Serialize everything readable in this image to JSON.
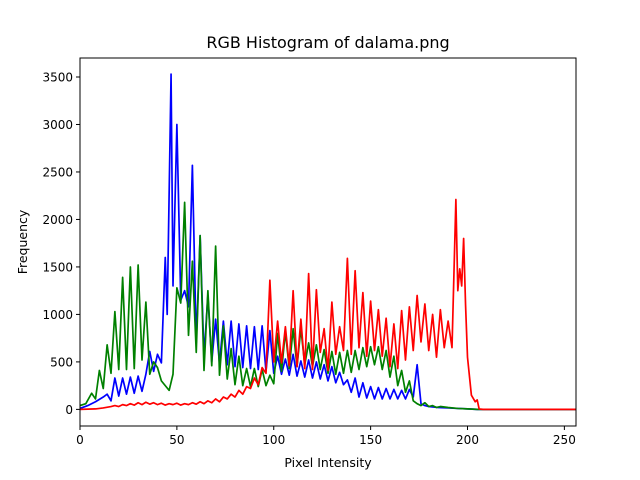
{
  "chart_data": {
    "type": "line",
    "title": "RGB Histogram of dalama.png",
    "xlabel": "Pixel Intensity",
    "ylabel": "Frequency",
    "xlim": [
      0,
      256
    ],
    "ylim": [
      -175,
      3700
    ],
    "xticks": [
      0,
      50,
      100,
      150,
      200,
      250
    ],
    "yticks": [
      0,
      500,
      1000,
      1500,
      2000,
      2500,
      3000,
      3500
    ],
    "grid": false,
    "legend": "none",
    "series": [
      {
        "color": "#0000ff",
        "points": [
          [
            0,
            10
          ],
          [
            4,
            40
          ],
          [
            8,
            80
          ],
          [
            12,
            130
          ],
          [
            14,
            160
          ],
          [
            16,
            90
          ],
          [
            18,
            330
          ],
          [
            20,
            140
          ],
          [
            22,
            330
          ],
          [
            24,
            160
          ],
          [
            26,
            340
          ],
          [
            28,
            170
          ],
          [
            30,
            350
          ],
          [
            32,
            190
          ],
          [
            34,
            370
          ],
          [
            36,
            610
          ],
          [
            38,
            400
          ],
          [
            40,
            580
          ],
          [
            42,
            490
          ],
          [
            44,
            1600
          ],
          [
            45,
            1000
          ],
          [
            47,
            3530
          ],
          [
            48,
            1300
          ],
          [
            50,
            3000
          ],
          [
            52,
            1150
          ],
          [
            54,
            1250
          ],
          [
            56,
            1080
          ],
          [
            58,
            2570
          ],
          [
            60,
            700
          ],
          [
            62,
            1830
          ],
          [
            64,
            560
          ],
          [
            66,
            1200
          ],
          [
            68,
            500
          ],
          [
            70,
            950
          ],
          [
            72,
            480
          ],
          [
            74,
            930
          ],
          [
            76,
            470
          ],
          [
            78,
            930
          ],
          [
            80,
            450
          ],
          [
            82,
            900
          ],
          [
            84,
            440
          ],
          [
            86,
            880
          ],
          [
            88,
            430
          ],
          [
            90,
            870
          ],
          [
            92,
            420
          ],
          [
            94,
            880
          ],
          [
            96,
            400
          ],
          [
            98,
            830
          ],
          [
            100,
            380
          ],
          [
            102,
            560
          ],
          [
            104,
            370
          ],
          [
            106,
            530
          ],
          [
            108,
            360
          ],
          [
            110,
            580
          ],
          [
            112,
            350
          ],
          [
            114,
            510
          ],
          [
            116,
            340
          ],
          [
            118,
            520
          ],
          [
            120,
            330
          ],
          [
            122,
            500
          ],
          [
            124,
            320
          ],
          [
            126,
            470
          ],
          [
            128,
            300
          ],
          [
            130,
            450
          ],
          [
            132,
            280
          ],
          [
            134,
            390
          ],
          [
            136,
            260
          ],
          [
            138,
            310
          ],
          [
            140,
            180
          ],
          [
            142,
            330
          ],
          [
            144,
            130
          ],
          [
            146,
            280
          ],
          [
            148,
            120
          ],
          [
            150,
            240
          ],
          [
            152,
            110
          ],
          [
            154,
            230
          ],
          [
            156,
            110
          ],
          [
            158,
            220
          ],
          [
            160,
            110
          ],
          [
            162,
            210
          ],
          [
            164,
            110
          ],
          [
            166,
            200
          ],
          [
            168,
            110
          ],
          [
            170,
            210
          ],
          [
            172,
            130
          ],
          [
            174,
            470
          ],
          [
            176,
            60
          ],
          [
            178,
            40
          ],
          [
            180,
            30
          ],
          [
            185,
            20
          ],
          [
            190,
            15
          ],
          [
            195,
            10
          ],
          [
            200,
            5
          ],
          [
            205,
            0
          ],
          [
            256,
            0
          ]
        ]
      },
      {
        "color": "#008000",
        "points": [
          [
            0,
            40
          ],
          [
            3,
            60
          ],
          [
            6,
            170
          ],
          [
            8,
            110
          ],
          [
            10,
            410
          ],
          [
            12,
            220
          ],
          [
            14,
            680
          ],
          [
            16,
            380
          ],
          [
            18,
            1030
          ],
          [
            20,
            420
          ],
          [
            22,
            1390
          ],
          [
            24,
            420
          ],
          [
            26,
            1500
          ],
          [
            28,
            430
          ],
          [
            30,
            1520
          ],
          [
            32,
            520
          ],
          [
            34,
            1130
          ],
          [
            36,
            370
          ],
          [
            38,
            500
          ],
          [
            40,
            440
          ],
          [
            42,
            300
          ],
          [
            44,
            250
          ],
          [
            46,
            200
          ],
          [
            48,
            370
          ],
          [
            50,
            1280
          ],
          [
            52,
            1120
          ],
          [
            54,
            2180
          ],
          [
            56,
            780
          ],
          [
            58,
            1560
          ],
          [
            60,
            600
          ],
          [
            62,
            1830
          ],
          [
            64,
            410
          ],
          [
            66,
            1250
          ],
          [
            68,
            460
          ],
          [
            70,
            1720
          ],
          [
            72,
            360
          ],
          [
            74,
            880
          ],
          [
            76,
            320
          ],
          [
            78,
            640
          ],
          [
            80,
            260
          ],
          [
            82,
            560
          ],
          [
            84,
            250
          ],
          [
            86,
            430
          ],
          [
            88,
            240
          ],
          [
            90,
            430
          ],
          [
            92,
            240
          ],
          [
            94,
            420
          ],
          [
            96,
            250
          ],
          [
            98,
            360
          ],
          [
            100,
            270
          ],
          [
            102,
            800
          ],
          [
            104,
            400
          ],
          [
            106,
            820
          ],
          [
            108,
            430
          ],
          [
            110,
            850
          ],
          [
            112,
            450
          ],
          [
            114,
            850
          ],
          [
            116,
            470
          ],
          [
            118,
            700
          ],
          [
            120,
            450
          ],
          [
            122,
            680
          ],
          [
            124,
            420
          ],
          [
            126,
            630
          ],
          [
            128,
            380
          ],
          [
            130,
            610
          ],
          [
            132,
            370
          ],
          [
            134,
            600
          ],
          [
            136,
            380
          ],
          [
            138,
            620
          ],
          [
            140,
            390
          ],
          [
            142,
            620
          ],
          [
            144,
            420
          ],
          [
            146,
            650
          ],
          [
            148,
            450
          ],
          [
            150,
            660
          ],
          [
            152,
            470
          ],
          [
            154,
            660
          ],
          [
            156,
            420
          ],
          [
            158,
            620
          ],
          [
            160,
            340
          ],
          [
            162,
            560
          ],
          [
            164,
            250
          ],
          [
            166,
            410
          ],
          [
            168,
            180
          ],
          [
            170,
            300
          ],
          [
            172,
            90
          ],
          [
            174,
            60
          ],
          [
            176,
            40
          ],
          [
            178,
            70
          ],
          [
            180,
            30
          ],
          [
            182,
            40
          ],
          [
            184,
            20
          ],
          [
            186,
            30
          ],
          [
            190,
            20
          ],
          [
            195,
            10
          ],
          [
            200,
            5
          ],
          [
            205,
            0
          ],
          [
            256,
            0
          ]
        ]
      },
      {
        "color": "#ff0000",
        "points": [
          [
            0,
            0
          ],
          [
            8,
            5
          ],
          [
            12,
            15
          ],
          [
            16,
            30
          ],
          [
            18,
            40
          ],
          [
            20,
            30
          ],
          [
            22,
            50
          ],
          [
            24,
            40
          ],
          [
            26,
            60
          ],
          [
            28,
            45
          ],
          [
            30,
            70
          ],
          [
            32,
            50
          ],
          [
            34,
            75
          ],
          [
            36,
            55
          ],
          [
            38,
            70
          ],
          [
            40,
            50
          ],
          [
            42,
            65
          ],
          [
            44,
            45
          ],
          [
            46,
            60
          ],
          [
            48,
            50
          ],
          [
            50,
            65
          ],
          [
            52,
            45
          ],
          [
            54,
            60
          ],
          [
            56,
            50
          ],
          [
            58,
            70
          ],
          [
            60,
            55
          ],
          [
            62,
            80
          ],
          [
            64,
            60
          ],
          [
            66,
            90
          ],
          [
            68,
            70
          ],
          [
            70,
            110
          ],
          [
            72,
            80
          ],
          [
            74,
            130
          ],
          [
            76,
            110
          ],
          [
            78,
            160
          ],
          [
            80,
            130
          ],
          [
            82,
            200
          ],
          [
            84,
            160
          ],
          [
            86,
            240
          ],
          [
            88,
            220
          ],
          [
            90,
            330
          ],
          [
            92,
            260
          ],
          [
            94,
            440
          ],
          [
            96,
            380
          ],
          [
            98,
            1360
          ],
          [
            100,
            500
          ],
          [
            102,
            930
          ],
          [
            104,
            490
          ],
          [
            106,
            870
          ],
          [
            108,
            460
          ],
          [
            110,
            1250
          ],
          [
            112,
            450
          ],
          [
            114,
            950
          ],
          [
            116,
            430
          ],
          [
            118,
            1430
          ],
          [
            120,
            420
          ],
          [
            122,
            1260
          ],
          [
            124,
            600
          ],
          [
            126,
            850
          ],
          [
            128,
            410
          ],
          [
            130,
            1130
          ],
          [
            132,
            580
          ],
          [
            134,
            870
          ],
          [
            136,
            620
          ],
          [
            138,
            1590
          ],
          [
            140,
            580
          ],
          [
            142,
            1460
          ],
          [
            144,
            650
          ],
          [
            146,
            1230
          ],
          [
            148,
            560
          ],
          [
            150,
            1140
          ],
          [
            152,
            620
          ],
          [
            154,
            1050
          ],
          [
            156,
            560
          ],
          [
            158,
            960
          ],
          [
            160,
            450
          ],
          [
            162,
            900
          ],
          [
            164,
            430
          ],
          [
            166,
            1040
          ],
          [
            168,
            520
          ],
          [
            170,
            1080
          ],
          [
            172,
            620
          ],
          [
            174,
            1200
          ],
          [
            176,
            710
          ],
          [
            178,
            1110
          ],
          [
            180,
            620
          ],
          [
            182,
            1000
          ],
          [
            184,
            550
          ],
          [
            186,
            1050
          ],
          [
            188,
            650
          ],
          [
            190,
            930
          ],
          [
            192,
            650
          ],
          [
            194,
            2210
          ],
          [
            195,
            1250
          ],
          [
            196,
            1480
          ],
          [
            197,
            1300
          ],
          [
            198,
            1800
          ],
          [
            199,
            1100
          ],
          [
            200,
            550
          ],
          [
            202,
            150
          ],
          [
            204,
            80
          ],
          [
            205,
            100
          ],
          [
            206,
            5
          ],
          [
            208,
            0
          ],
          [
            256,
            0
          ]
        ]
      }
    ]
  }
}
